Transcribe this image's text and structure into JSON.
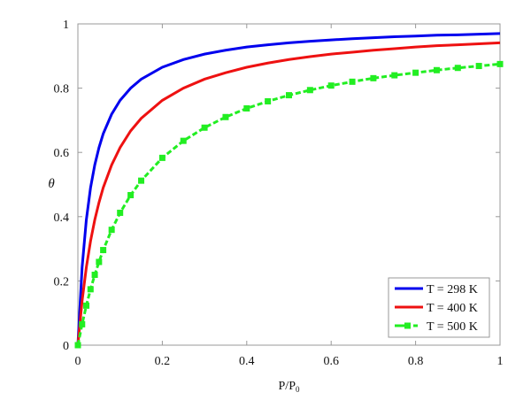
{
  "chart_data": {
    "type": "line",
    "title": "",
    "xlabel": "P/P",
    "xlabel_sub": "0",
    "ylabel": "θ",
    "xlim": [
      0,
      1
    ],
    "ylim": [
      0,
      1
    ],
    "xticks": [
      "0",
      "0.2",
      "0.4",
      "0.6",
      "0.8",
      "1"
    ],
    "yticks": [
      "0",
      "0.2",
      "0.4",
      "0.6",
      "0.8",
      "1"
    ],
    "grid": false,
    "legend_position": "bottom-right",
    "x": [
      0,
      0.01,
      0.02,
      0.03,
      0.04,
      0.05,
      0.06,
      0.08,
      0.1,
      0.125,
      0.15,
      0.2,
      0.25,
      0.3,
      0.35,
      0.4,
      0.45,
      0.5,
      0.55,
      0.6,
      0.65,
      0.7,
      0.75,
      0.8,
      0.85,
      0.9,
      0.95,
      1
    ],
    "series": [
      {
        "name": "T = 298 K",
        "color": "#0000ee",
        "style": "solid",
        "values": [
          0,
          0.242,
          0.39,
          0.49,
          0.561,
          0.615,
          0.658,
          0.719,
          0.762,
          0.8,
          0.828,
          0.865,
          0.889,
          0.906,
          0.918,
          0.928,
          0.935,
          0.941,
          0.946,
          0.95,
          0.954,
          0.957,
          0.96,
          0.962,
          0.965,
          0.966,
          0.968,
          0.97
        ]
      },
      {
        "name": "T = 400 K",
        "color": "#ee1111",
        "style": "solid",
        "values": [
          0,
          0.138,
          0.242,
          0.324,
          0.39,
          0.444,
          0.49,
          0.561,
          0.615,
          0.667,
          0.706,
          0.762,
          0.8,
          0.828,
          0.848,
          0.865,
          0.878,
          0.889,
          0.898,
          0.906,
          0.912,
          0.918,
          0.923,
          0.928,
          0.932,
          0.935,
          0.938,
          0.941
        ]
      },
      {
        "name": "T = 500 K",
        "color": "#22ee22",
        "style": "dashed-square-markers",
        "values": [
          0,
          0.065,
          0.123,
          0.174,
          0.219,
          0.259,
          0.296,
          0.359,
          0.412,
          0.467,
          0.512,
          0.583,
          0.636,
          0.677,
          0.71,
          0.737,
          0.759,
          0.778,
          0.794,
          0.808,
          0.82,
          0.831,
          0.84,
          0.848,
          0.856,
          0.863,
          0.869,
          0.875
        ]
      }
    ]
  }
}
